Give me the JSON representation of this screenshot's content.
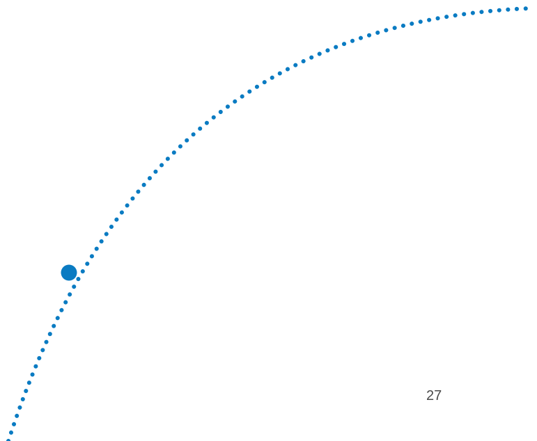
{
  "slide": {
    "page_number": "27"
  },
  "colors": {
    "background": "#ffffff",
    "accent": "#0a7bc2",
    "text": "#4a4a4a"
  },
  "decorations": {
    "arc_style": "dotted",
    "marker": "filled-circle"
  }
}
